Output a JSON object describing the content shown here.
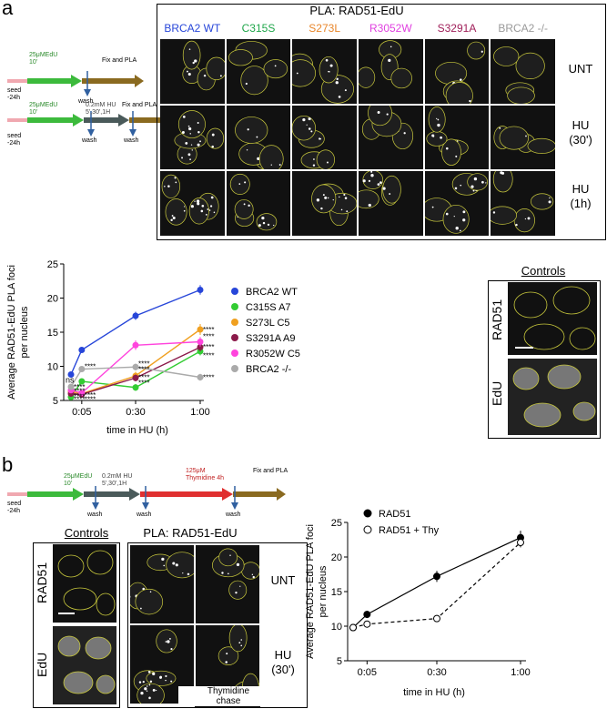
{
  "panel_a": {
    "letter": "a",
    "pla_title": "PLA: RAD51-EdU",
    "columns": [
      {
        "label": "BRCA2 WT",
        "color": "#2746d9"
      },
      {
        "label": "C315S",
        "color": "#1fa64a"
      },
      {
        "label": "S273L",
        "color": "#e8862a"
      },
      {
        "label": "R3052W",
        "color": "#e040e0"
      },
      {
        "label": "S3291A",
        "color": "#a0205a"
      },
      {
        "label": "BRCA2 -/-",
        "color": "#9a9a9a"
      }
    ],
    "rows": [
      "UNT",
      "HU\n(30')",
      "HU\n(1h)"
    ],
    "schematic1": {
      "edu": "25μMEdU\n10'",
      "fix": "Fix and PLA",
      "seed": "seed\n-24h",
      "wash": "wash"
    },
    "schematic2": {
      "edu": "25μMEdU\n10'",
      "hu": "0.2mM HU\n5',30',1H",
      "fix": "Fix and PLA",
      "seed": "seed\n-24h",
      "wash1": "wash",
      "wash2": "wash"
    },
    "controls_title": "Controls",
    "controls_rows": [
      "RAD51",
      "EdU"
    ]
  },
  "chart_a": {
    "type": "line",
    "ylabel": "Average RAD51-EdU PLA foci\nper nucleus",
    "xlabel": "time in HU (h)",
    "categories": [
      "0:05",
      "0:30",
      "1:00"
    ],
    "x": [
      5,
      30,
      60
    ],
    "ylim": [
      5,
      25
    ],
    "yticks": [
      5,
      10,
      15,
      20,
      25
    ],
    "grid": false,
    "legend_position": "right",
    "series": [
      {
        "name": "BRCA2 WT",
        "color": "#2746d9",
        "x": [
          0,
          5,
          30,
          60
        ],
        "values": [
          8.8,
          12.4,
          17.4,
          21.2
        ],
        "errors": [
          0.4,
          0.4,
          0.6,
          0.7
        ]
      },
      {
        "name": "C315S A7",
        "color": "#33cc33",
        "x": [
          0,
          5,
          30,
          60
        ],
        "values": [
          5.5,
          7.8,
          6.9,
          12.2
        ],
        "errors": [
          0.3,
          0.4,
          0.5,
          0.6
        ]
      },
      {
        "name": "S273L C5",
        "color": "#f0a020",
        "x": [
          0,
          5,
          30,
          60
        ],
        "values": [
          6.3,
          6.0,
          8.6,
          15.4
        ],
        "errors": [
          0.3,
          0.3,
          0.6,
          0.8
        ]
      },
      {
        "name": "S3291A A9",
        "color": "#8b1a4a",
        "x": [
          0,
          5,
          30,
          60
        ],
        "values": [
          6.0,
          5.9,
          8.3,
          12.8
        ],
        "errors": [
          0.3,
          0.3,
          0.5,
          0.6
        ]
      },
      {
        "name": "R3052W C5",
        "color": "#ff44dd",
        "x": [
          0,
          5,
          30,
          60
        ],
        "values": [
          6.5,
          6.1,
          13.1,
          13.6
        ],
        "errors": [
          0.3,
          0.4,
          0.7,
          0.7
        ]
      },
      {
        "name": "BRCA2 -/-",
        "color": "#aaaaaa",
        "x": [
          0,
          5,
          30,
          60
        ],
        "values": [
          7.0,
          9.6,
          9.9,
          8.4
        ],
        "errors": [
          0.3,
          0.4,
          0.5,
          0.5
        ]
      }
    ],
    "annotations": [
      "****",
      "ns"
    ]
  },
  "panel_b": {
    "letter": "b",
    "schematic": {
      "edu": "25μMEdU\n10'",
      "hu": "0.2mM HU\n5',30',1H",
      "thy": "125μM\nThymidine 4h",
      "fix": "Fix and PLA",
      "seed": "seed\n-24h",
      "wash1": "wash",
      "wash2": "wash",
      "wash3": "wash"
    },
    "controls_title": "Controls",
    "pla_title": "PLA: RAD51-EdU",
    "side_rows": [
      "RAD51",
      "EdU"
    ],
    "rows": [
      "UNT",
      "HU\n(30')"
    ],
    "chase_label": "Thymidine\nchase"
  },
  "chart_b": {
    "type": "line",
    "ylabel": "Average RAD51-EdU PLA foci\nper nucleus",
    "xlabel": "time in HU (h)",
    "categories": [
      "0:05",
      "0:30",
      "1:00"
    ],
    "ylim": [
      5,
      25
    ],
    "yticks": [
      5,
      10,
      15,
      20,
      25
    ],
    "legend_position": "top-right",
    "series": [
      {
        "name": "RAD51",
        "style": "solid-filled",
        "x": [
          0,
          5,
          30,
          60
        ],
        "values": [
          9.8,
          11.7,
          17.2,
          22.8
        ],
        "errors": [
          0.3,
          0.5,
          0.8,
          1.0
        ]
      },
      {
        "name": "RAD51  + Thy",
        "style": "dashed-open",
        "x": [
          0,
          5,
          30,
          60
        ],
        "values": [
          9.8,
          10.3,
          11.1,
          22.1
        ],
        "errors": [
          0.3,
          0.3,
          0.5,
          0.7
        ]
      }
    ]
  }
}
